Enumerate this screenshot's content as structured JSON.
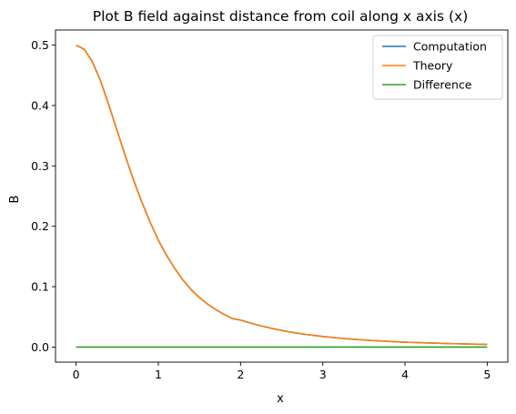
{
  "chart_data": {
    "type": "line",
    "title": "Plot B field against distance from coil along x axis (x)",
    "xlabel": "x",
    "ylabel": "B",
    "xlim": [
      -0.25,
      5.25
    ],
    "ylim": [
      -0.025,
      0.525
    ],
    "x_ticks": [
      0,
      1,
      2,
      3,
      4,
      5
    ],
    "y_ticks": [
      0.0,
      0.1,
      0.2,
      0.3,
      0.4,
      0.5
    ],
    "x_tick_labels": [
      "0",
      "1",
      "2",
      "3",
      "4",
      "5"
    ],
    "y_tick_labels": [
      "0.0",
      "0.1",
      "0.2",
      "0.3",
      "0.4",
      "0.5"
    ],
    "grid": false,
    "legend_position": "top-right",
    "x": [
      0,
      0.1,
      0.2,
      0.3,
      0.4,
      0.5,
      0.6,
      0.7,
      0.8,
      0.9,
      1.0,
      1.1,
      1.2,
      1.3,
      1.4,
      1.5,
      1.6,
      1.7,
      1.8,
      1.9,
      2.0,
      2.1,
      2.2,
      2.3,
      2.4,
      2.5,
      2.6,
      2.7,
      2.8,
      2.9,
      3.0,
      3.1,
      3.2,
      3.3,
      3.4,
      3.5,
      3.6,
      3.7,
      3.8,
      3.9,
      4.0,
      4.1,
      4.2,
      4.3,
      4.4,
      4.5,
      4.6,
      4.7,
      4.8,
      4.9,
      5.0
    ],
    "series": [
      {
        "name": "Computation",
        "color": "#1f77b4",
        "values": [
          0.5,
          0.493,
          0.472,
          0.44,
          0.4,
          0.358,
          0.316,
          0.276,
          0.24,
          0.207,
          0.177,
          0.152,
          0.13,
          0.111,
          0.095,
          0.082,
          0.071,
          0.062,
          0.054,
          0.047,
          0.0447,
          0.0406,
          0.0368,
          0.0334,
          0.0303,
          0.0275,
          0.025,
          0.0228,
          0.0208,
          0.0191,
          0.0175,
          0.0161,
          0.0148,
          0.0136,
          0.0126,
          0.0117,
          0.0108,
          0.0101,
          0.0094,
          0.0087,
          0.0081,
          0.0076,
          0.0071,
          0.0067,
          0.0063,
          0.0059,
          0.0055,
          0.0052,
          0.0049,
          0.0046,
          0.0044
        ]
      },
      {
        "name": "Theory",
        "color": "#ff7f0e",
        "values": [
          0.5,
          0.493,
          0.472,
          0.44,
          0.4,
          0.358,
          0.316,
          0.276,
          0.24,
          0.207,
          0.177,
          0.152,
          0.13,
          0.111,
          0.095,
          0.082,
          0.071,
          0.062,
          0.054,
          0.047,
          0.0447,
          0.0406,
          0.0368,
          0.0334,
          0.0303,
          0.0275,
          0.025,
          0.0228,
          0.0208,
          0.0191,
          0.0175,
          0.0161,
          0.0148,
          0.0136,
          0.0126,
          0.0117,
          0.0108,
          0.0101,
          0.0094,
          0.0087,
          0.0081,
          0.0076,
          0.0071,
          0.0067,
          0.0063,
          0.0059,
          0.0055,
          0.0052,
          0.0049,
          0.0046,
          0.0044
        ]
      },
      {
        "name": "Difference",
        "color": "#2ca02c",
        "values": [
          0,
          0,
          0,
          0,
          0,
          0,
          0,
          0,
          0,
          0,
          0,
          0,
          0,
          0,
          0,
          0,
          0,
          0,
          0,
          0,
          0,
          0,
          0,
          0,
          0,
          0,
          0,
          0,
          0,
          0,
          0,
          0,
          0,
          0,
          0,
          0,
          0,
          0,
          0,
          0,
          0,
          0,
          0,
          0,
          0,
          0,
          0,
          0,
          0,
          0,
          0
        ]
      }
    ]
  }
}
